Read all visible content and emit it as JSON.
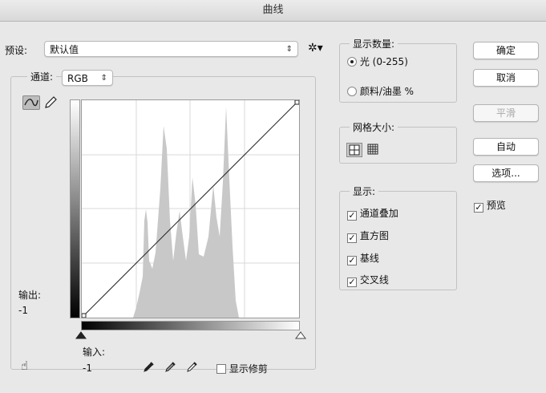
{
  "window": {
    "title": "曲线"
  },
  "preset": {
    "label": "预设:",
    "value": "默认值"
  },
  "channel": {
    "label": "通道:",
    "value": "RGB"
  },
  "show_amount": {
    "title": "显示数量:",
    "options": [
      "光 (0-255)",
      "颜料/油墨 %"
    ],
    "selected": 0
  },
  "grid_size": {
    "title": "网格大小:"
  },
  "display": {
    "title": "显示:",
    "options": [
      "通道叠加",
      "直方图",
      "基线",
      "交叉线"
    ],
    "checked": [
      true,
      true,
      true,
      true
    ]
  },
  "buttons": {
    "ok": "确定",
    "cancel": "取消",
    "smooth": "平滑",
    "auto": "自动",
    "options": "选项..."
  },
  "preview": {
    "label": "预览",
    "checked": true
  },
  "output": {
    "label": "输出:",
    "value": "-1"
  },
  "input": {
    "label": "输入:",
    "value": "-1"
  },
  "show_clipping": {
    "label": "显示修剪",
    "checked": false
  },
  "colors": {
    "histogram": "#c8c8c8",
    "curve": "#222222"
  }
}
